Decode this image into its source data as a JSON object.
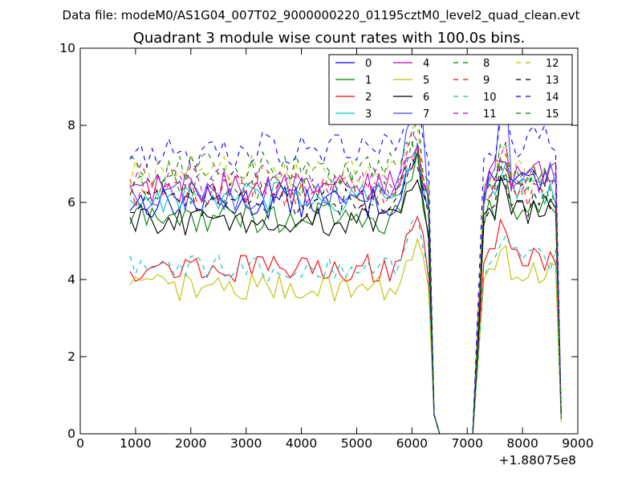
{
  "figure": {
    "suptitle": "Data file: modeM0/AS1G04_007T02_9000000220_01195cztM0_level2_quad_clean.evt"
  },
  "chart_data": {
    "type": "line",
    "title": "Quadrant 3 module wise count rates with 100.0s bins.",
    "xlabel": "",
    "ylabel": "",
    "xlim": [
      0,
      9000
    ],
    "ylim": [
      0,
      10
    ],
    "x_ticks": [
      0,
      1000,
      2000,
      3000,
      4000,
      5000,
      6000,
      7000,
      8000,
      9000
    ],
    "x_tick_labels": [
      "0",
      "1000",
      "2000",
      "3000",
      "4000",
      "5000",
      "6000",
      "7000",
      "8000",
      "9000"
    ],
    "y_ticks": [
      0,
      2,
      4,
      6,
      8,
      10
    ],
    "y_tick_labels": [
      "0",
      "2",
      "4",
      "6",
      "8",
      "10"
    ],
    "x_offset_label": "+1.88075e8",
    "legend_position": "upper-right",
    "legend_columns": 4,
    "grid": false,
    "x_segments": [
      {
        "start": 900,
        "end": 6400,
        "step": 100
      },
      {
        "start": 7100,
        "end": 8700,
        "step": 100
      }
    ],
    "gap_x": [
      6500,
      6600,
      6700,
      6800,
      6900,
      7000
    ],
    "gap_value": 0,
    "series": [
      {
        "name": "0",
        "color": "#0000ff",
        "dash": "solid",
        "level": 6.0,
        "spread": 0.35,
        "seg2_level": 6.5,
        "peak": 7.4,
        "end": 0.45
      },
      {
        "name": "1",
        "color": "#008000",
        "dash": "solid",
        "level": 5.6,
        "spread": 0.35,
        "seg2_level": 5.8,
        "peak": 7.2,
        "end": 0.4
      },
      {
        "name": "2",
        "color": "#ff0000",
        "dash": "solid",
        "level": 4.3,
        "spread": 0.3,
        "seg2_level": 4.6,
        "peak": 5.9,
        "end": 0.4
      },
      {
        "name": "3",
        "color": "#00bfbf",
        "dash": "solid",
        "level": 6.1,
        "spread": 0.35,
        "seg2_level": 6.3,
        "peak": 7.5,
        "end": 0.45
      },
      {
        "name": "4",
        "color": "#bf00bf",
        "dash": "solid",
        "level": 6.4,
        "spread": 0.35,
        "seg2_level": 6.7,
        "peak": 7.8,
        "end": 0.45
      },
      {
        "name": "5",
        "color": "#bfbf00",
        "dash": "solid",
        "level": 3.8,
        "spread": 0.3,
        "seg2_level": 4.2,
        "peak": 5.1,
        "end": 0.3
      },
      {
        "name": "6",
        "color": "#000000",
        "dash": "solid",
        "level": 5.5,
        "spread": 0.3,
        "seg2_level": 5.8,
        "peak": 7.0,
        "end": 0.4
      },
      {
        "name": "7",
        "color": "#4444ff",
        "dash": "solid",
        "level": 6.2,
        "spread": 0.4,
        "seg2_level": 6.6,
        "peak": 9.5,
        "end": 0.5
      },
      {
        "name": "8",
        "color": "#008000",
        "dash": "dashed",
        "level": 6.9,
        "spread": 0.4,
        "seg2_level": 6.5,
        "peak": 8.2,
        "end": 0.45
      },
      {
        "name": "9",
        "color": "#ff0000",
        "dash": "dashed",
        "level": 6.3,
        "spread": 0.35,
        "seg2_level": 6.2,
        "peak": 7.6,
        "end": 0.4
      },
      {
        "name": "10",
        "color": "#00bfbf",
        "dash": "dashed",
        "level": 4.3,
        "spread": 0.3,
        "seg2_level": 4.5,
        "peak": 5.6,
        "end": 0.4
      },
      {
        "name": "11",
        "color": "#bf00bf",
        "dash": "dashed",
        "level": 6.6,
        "spread": 0.35,
        "seg2_level": 6.6,
        "peak": 7.9,
        "end": 0.45
      },
      {
        "name": "12",
        "color": "#bfbf00",
        "dash": "dashed",
        "level": 6.8,
        "spread": 0.35,
        "seg2_level": 6.7,
        "peak": 8.0,
        "end": 0.45
      },
      {
        "name": "13",
        "color": "#000000",
        "dash": "dashed",
        "level": 6.0,
        "spread": 0.3,
        "seg2_level": 6.0,
        "peak": 7.3,
        "end": 0.45
      },
      {
        "name": "14",
        "color": "#0000ff",
        "dash": "dashed",
        "level": 7.4,
        "spread": 0.4,
        "seg2_level": 7.6,
        "peak": 9.0,
        "end": 0.5
      },
      {
        "name": "15",
        "color": "#008000",
        "dash": "dashed",
        "level": 6.4,
        "spread": 0.4,
        "seg2_level": 6.4,
        "peak": 7.7,
        "end": 0.45
      }
    ]
  }
}
